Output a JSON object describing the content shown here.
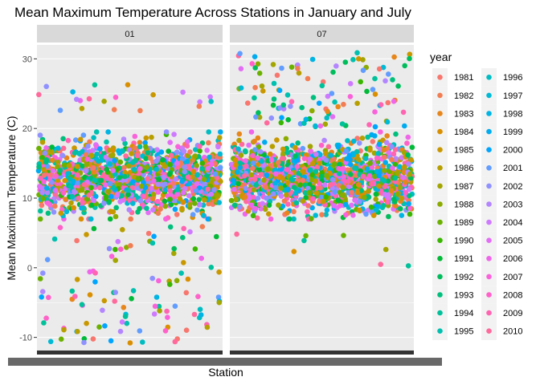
{
  "chart_data": {
    "type": "scatter",
    "title": "Mean Maximum Temperature Across Stations in January and July",
    "xlabel": "Station",
    "ylabel": "Mean Maximum Temperature (C)",
    "ylim": [
      -12,
      32
    ],
    "yticks": [
      -10,
      0,
      10,
      20,
      30
    ],
    "facets": [
      "01",
      "07"
    ],
    "legend_title": "year",
    "legend_position": "right",
    "years": [
      1981,
      1982,
      1983,
      1984,
      1985,
      1986,
      1987,
      1988,
      1989,
      1990,
      1991,
      1992,
      1993,
      1994,
      1995,
      1996,
      1997,
      1998,
      1999,
      2000,
      2001,
      2002,
      2003,
      2004,
      2005,
      2006,
      2007,
      2008,
      2009,
      2010
    ],
    "colors": [
      "#F8766D",
      "#F27D52",
      "#E7861B",
      "#DA8F00",
      "#C99800",
      "#B79F00",
      "#A3A500",
      "#8BAB00",
      "#6BB100",
      "#39B600",
      "#00BA38",
      "#00BD5C",
      "#00BF7D",
      "#00C19A",
      "#00C0AF",
      "#00BDC2",
      "#00BAD5",
      "#00B4E4",
      "#00ABF0",
      "#00A5FF",
      "#619CFF",
      "#8F91FF",
      "#B385FF",
      "#CE7AFF",
      "#E36EF6",
      "#F066EA",
      "#FA62DB",
      "#FF61C9",
      "#FF64B2",
      "#FF699C"
    ],
    "series_summary": {
      "01": {
        "typical_range": [
          8,
          18
        ],
        "outliers_high": [
          22.5,
          26.5
        ],
        "outliers_low": [
          -11,
          6
        ]
      },
      "07": {
        "typical_range": [
          8,
          18
        ],
        "outliers_high": [
          20,
          31
        ],
        "outliers_low": [
          0,
          5
        ]
      }
    },
    "x_tick_labels_note": "station IDs (overlapping, illegible)"
  }
}
